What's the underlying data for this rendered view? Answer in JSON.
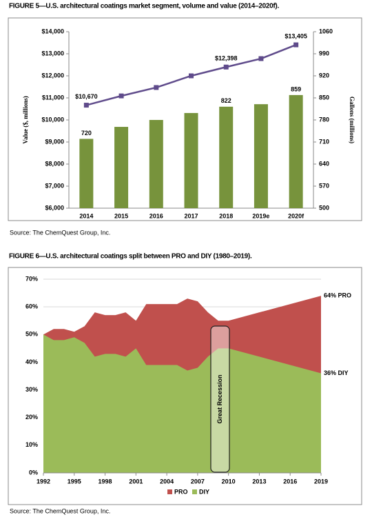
{
  "chart_data": [
    {
      "type": "bar",
      "title": "FIGURE 5—U.S. architectural coatings market segment, volume and value (2014–2020f).",
      "source": "Source: The ChemQuest Group, Inc.",
      "categories": [
        "2014",
        "2015",
        "2016",
        "2017",
        "2018",
        "2019e",
        "2020f"
      ],
      "ylabel": "Value ($, millions)",
      "y2label": "Gallons (millions)",
      "ylim": [
        6000,
        14000
      ],
      "yticks": [
        {
          "value": 6000,
          "label": "$6,000"
        },
        {
          "value": 7000,
          "label": "$7,000"
        },
        {
          "value": 8000,
          "label": "$8,000"
        },
        {
          "value": 9000,
          "label": "$9,000"
        },
        {
          "value": 10000,
          "label": "$10,000"
        },
        {
          "value": 11000,
          "label": "$11,000"
        },
        {
          "value": 12000,
          "label": "$12,000"
        },
        {
          "value": 13000,
          "label": "$13,000"
        },
        {
          "value": 14000,
          "label": "$14,000"
        }
      ],
      "y2lim": [
        500,
        1060
      ],
      "y2ticks": [
        500,
        570,
        640,
        710,
        780,
        850,
        920,
        990,
        1060
      ],
      "series": [
        {
          "type": "bar",
          "axis": "y2",
          "color": "#77933c",
          "values": [
            720,
            758,
            780,
            802,
            822,
            830,
            859
          ],
          "value_labels": [
            "720",
            null,
            null,
            null,
            "822",
            null,
            "859"
          ]
        },
        {
          "type": "line",
          "color": "#5f4b8b",
          "values": [
            10670,
            11090,
            11470,
            12000,
            12398,
            12780,
            13405
          ],
          "value_labels": [
            "$10,670",
            null,
            null,
            null,
            "$12,398",
            null,
            "$13,405"
          ]
        }
      ]
    },
    {
      "type": "area",
      "title": "FIGURE 6—U.S. architectural coatings split between PRO and DIY (1980–2019).",
      "source": "Source: The ChemQuest Group, Inc.",
      "x": [
        1992,
        1993,
        1994,
        1995,
        1996,
        1997,
        1998,
        1999,
        2000,
        2001,
        2002,
        2003,
        2004,
        2005,
        2006,
        2007,
        2008,
        2009,
        2010,
        2019
      ],
      "xlim": [
        1992,
        2019
      ],
      "xticks": [
        1992,
        1995,
        1998,
        2001,
        2004,
        2007,
        2010,
        2013,
        2016,
        2019
      ],
      "ylim": [
        0,
        70
      ],
      "yticks": [
        {
          "value": 0,
          "label": "0%"
        },
        {
          "value": 10,
          "label": "10%"
        },
        {
          "value": 20,
          "label": "20%"
        },
        {
          "value": 30,
          "label": "30%"
        },
        {
          "value": 40,
          "label": "40%"
        },
        {
          "value": 50,
          "label": "50%"
        },
        {
          "value": 60,
          "label": "60%"
        },
        {
          "value": 70,
          "label": "70%"
        }
      ],
      "grid": true,
      "legend": "bottom",
      "annotation": "Great Recession",
      "series": [
        {
          "name": "PRO",
          "color": "#c0504d",
          "values": [
            50,
            52,
            52,
            51,
            53,
            58,
            57,
            57,
            58,
            55,
            61,
            61,
            61,
            61,
            63,
            62,
            58,
            55,
            55,
            64
          ],
          "end_label": "64% PRO"
        },
        {
          "name": "DIY",
          "color": "#9bbb59",
          "values": [
            50,
            48,
            48,
            49,
            47,
            42,
            43,
            43,
            42,
            45,
            39,
            39,
            39,
            39,
            37,
            38,
            42,
            45,
            45,
            36
          ],
          "end_label": "36% DIY"
        }
      ]
    }
  ]
}
